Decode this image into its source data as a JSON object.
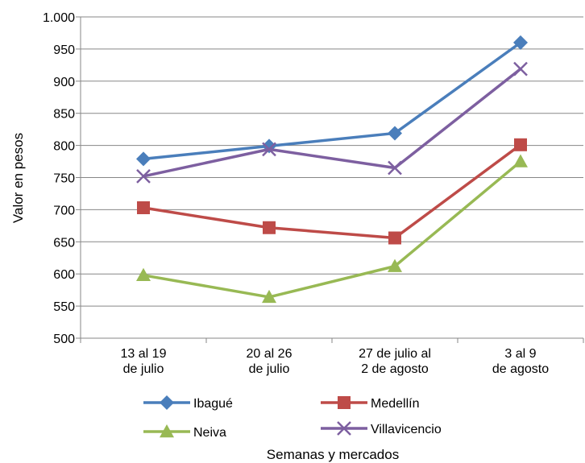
{
  "chart_data": {
    "type": "line",
    "title": "",
    "xlabel": "Semanas y mercados",
    "ylabel": "Valor en pesos",
    "ylim": [
      500,
      1000
    ],
    "yticks": [
      500,
      550,
      600,
      650,
      700,
      750,
      800,
      850,
      900,
      950,
      1000
    ],
    "ytick_labels": [
      "500",
      "550",
      "600",
      "650",
      "700",
      "750",
      "800",
      "850",
      "900",
      "950",
      "1.000"
    ],
    "grid": true,
    "legend_position": "bottom",
    "categories": [
      [
        "13 al 19",
        "de julio"
      ],
      [
        "20 al 26",
        "de julio"
      ],
      [
        "27  de julio al",
        "2 de agosto"
      ],
      [
        "3 al 9",
        "de agosto"
      ]
    ],
    "series": [
      {
        "name": "Ibagué",
        "color": "#4a7ebb",
        "marker": "diamond",
        "values": [
          779,
          799,
          819,
          960
        ]
      },
      {
        "name": "Medellín",
        "color": "#be4b48",
        "marker": "square",
        "values": [
          703,
          672,
          656,
          801
        ]
      },
      {
        "name": "Neiva",
        "color": "#98b954",
        "marker": "triangle",
        "values": [
          598,
          564,
          612,
          775
        ]
      },
      {
        "name": "Villavicencio",
        "color": "#7d5fa0",
        "marker": "x",
        "values": [
          752,
          794,
          765,
          919
        ]
      }
    ]
  }
}
